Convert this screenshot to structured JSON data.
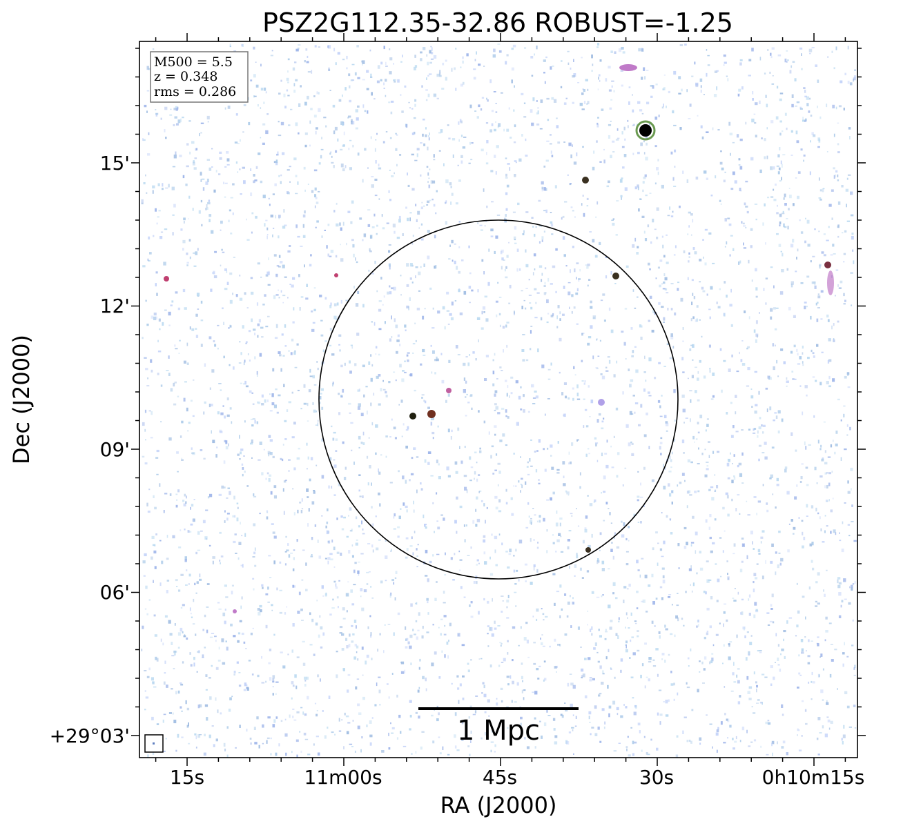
{
  "title": "PSZ2G112.35-32.86 ROBUST=-1.25",
  "x_axis": {
    "label": "RA (J2000)",
    "ticks": [
      "15s",
      "11m00s",
      "45s",
      "30s",
      "0h10m15s"
    ]
  },
  "y_axis": {
    "label": "Dec (J2000)",
    "ticks": [
      "15'",
      "12'",
      "09'",
      "06'",
      "+29°03'"
    ]
  },
  "info_box": [
    "M500 = 5.5",
    "z = 0.348",
    "rms = 0.286"
  ],
  "scale_bar": "1 Mpc"
}
